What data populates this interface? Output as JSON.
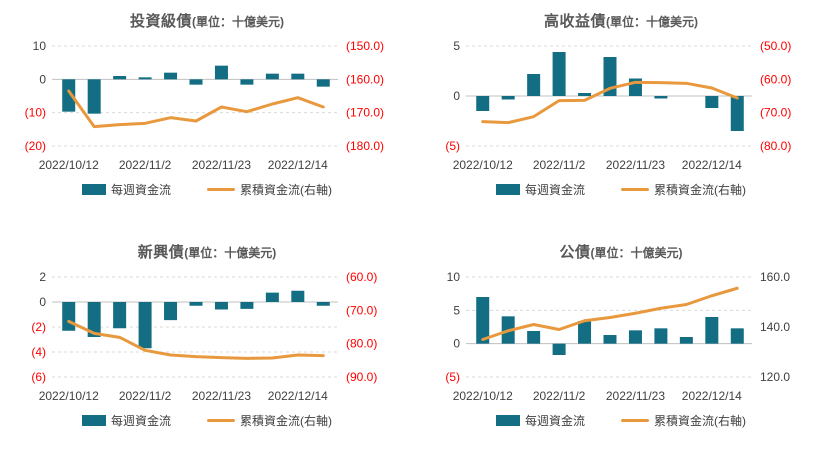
{
  "colors": {
    "bar": "#146e83",
    "line": "#e8993e",
    "negative_label": "#ff0000",
    "label": "#404040",
    "title": "#595959",
    "gridline": "#d9d9d9",
    "zeroline": "#c0c0c0",
    "background": "#ffffff"
  },
  "legend": {
    "bar_label": "每週資金流",
    "line_label": "累積資金流(右軸)"
  },
  "chart_data": [
    {
      "type": "bar+line",
      "title": "投資級債",
      "unit_label": "(單位：十億美元)",
      "n_points": 11,
      "x_tick_labels": [
        {
          "index": 0,
          "label": "2022/10/12"
        },
        {
          "index": 3,
          "label": "2022/11/2"
        },
        {
          "index": 6,
          "label": "2022/11/23"
        },
        {
          "index": 9,
          "label": "2022/12/14"
        }
      ],
      "series": [
        {
          "name": "每週資金流",
          "type": "bar",
          "axis": "left",
          "values": [
            -9.7,
            -10.3,
            1.0,
            0.6,
            2.0,
            -1.6,
            4.1,
            -1.6,
            1.7,
            1.7,
            -2.2
          ]
        },
        {
          "name": "累積資金流(右軸)",
          "type": "line",
          "axis": "right",
          "values": [
            -163.5,
            -174.2,
            -173.6,
            -173.2,
            -171.5,
            -172.5,
            -168.3,
            -169.7,
            -167.4,
            -165.5,
            -168.3
          ]
        }
      ],
      "left_axis": {
        "range": [
          -20,
          10
        ],
        "ticks": [
          {
            "label": "10",
            "value": 10
          },
          {
            "label": "0",
            "value": 0
          },
          {
            "label": "(10)",
            "value": -10
          },
          {
            "label": "(20)",
            "value": -20
          }
        ]
      },
      "right_axis": {
        "range": [
          -180,
          -150
        ],
        "ticks": [
          {
            "label": "(150.0)",
            "value": -150
          },
          {
            "label": "(160.0)",
            "value": -160
          },
          {
            "label": "(170.0)",
            "value": -170
          },
          {
            "label": "(180.0)",
            "value": -180
          }
        ]
      }
    },
    {
      "type": "bar+line",
      "title": "高收益債",
      "unit_label": "(單位：十億美元)",
      "n_points": 11,
      "x_tick_labels": [
        {
          "index": 0,
          "label": "2022/10/12"
        },
        {
          "index": 3,
          "label": "2022/11/2"
        },
        {
          "index": 6,
          "label": "2022/11/23"
        },
        {
          "index": 9,
          "label": "2022/12/14"
        }
      ],
      "series": [
        {
          "name": "每週資金流",
          "type": "bar",
          "axis": "left",
          "values": [
            -1.5,
            -0.35,
            2.2,
            4.4,
            0.3,
            3.9,
            1.75,
            -0.25,
            0,
            -1.2,
            -3.5
          ]
        },
        {
          "name": "累積資金流(右軸)",
          "type": "line",
          "axis": "right",
          "values": [
            -72.7,
            -73.0,
            -71.2,
            -66.4,
            -66.3,
            -62.7,
            -60.9,
            -61.0,
            -61.2,
            -62.6,
            -65.6
          ]
        }
      ],
      "left_axis": {
        "range": [
          -5,
          5
        ],
        "ticks": [
          {
            "label": "5",
            "value": 5
          },
          {
            "label": "0",
            "value": 0
          },
          {
            "label": "(5)",
            "value": -5
          }
        ]
      },
      "right_axis": {
        "range": [
          -80,
          -50
        ],
        "ticks": [
          {
            "label": "(50.0)",
            "value": -50
          },
          {
            "label": "(60.0)",
            "value": -60
          },
          {
            "label": "(70.0)",
            "value": -70
          },
          {
            "label": "(80.0)",
            "value": -80
          }
        ]
      }
    },
    {
      "type": "bar+line",
      "title": "新興債",
      "unit_label": "(單位：十億美元)",
      "n_points": 11,
      "x_tick_labels": [
        {
          "index": 0,
          "label": "2022/10/12"
        },
        {
          "index": 3,
          "label": "2022/11/2"
        },
        {
          "index": 6,
          "label": "2022/11/23"
        },
        {
          "index": 9,
          "label": "2022/12/14"
        }
      ],
      "series": [
        {
          "name": "每週資金流",
          "type": "bar",
          "axis": "left",
          "values": [
            -2.3,
            -2.8,
            -2.1,
            -3.7,
            -1.45,
            -0.3,
            -0.6,
            -0.55,
            0.75,
            0.9,
            -0.3
          ]
        },
        {
          "name": "累積資金流(右軸)",
          "type": "line",
          "axis": "right",
          "values": [
            -73.3,
            -76.9,
            -78.1,
            -82.0,
            -83.4,
            -83.9,
            -84.2,
            -84.4,
            -84.3,
            -83.4,
            -83.6
          ]
        }
      ],
      "left_axis": {
        "range": [
          -6,
          2
        ],
        "ticks": [
          {
            "label": "2",
            "value": 2
          },
          {
            "label": "0",
            "value": 0
          },
          {
            "label": "(2)",
            "value": -2
          },
          {
            "label": "(4)",
            "value": -4
          },
          {
            "label": "(6)",
            "value": -6
          }
        ]
      },
      "right_axis": {
        "range": [
          -90,
          -60
        ],
        "ticks": [
          {
            "label": "(60.0)",
            "value": -60
          },
          {
            "label": "(70.0)",
            "value": -70
          },
          {
            "label": "(80.0)",
            "value": -80
          },
          {
            "label": "(90.0)",
            "value": -90
          }
        ]
      }
    },
    {
      "type": "bar+line",
      "title": "公債",
      "unit_label": "(單位：十億美元)",
      "n_points": 11,
      "x_tick_labels": [
        {
          "index": 0,
          "label": "2022/10/12"
        },
        {
          "index": 3,
          "label": "2022/11/2"
        },
        {
          "index": 6,
          "label": "2022/11/23"
        },
        {
          "index": 9,
          "label": "2022/12/14"
        }
      ],
      "series": [
        {
          "name": "每週資金流",
          "type": "bar",
          "axis": "left",
          "values": [
            7.0,
            4.1,
            1.9,
            -1.7,
            3.4,
            1.3,
            2.0,
            2.3,
            1.0,
            4.0,
            2.3
          ]
        },
        {
          "name": "累積資金流(右軸)",
          "type": "line",
          "axis": "right",
          "values": [
            135.0,
            138.5,
            141.0,
            139.0,
            142.5,
            143.8,
            145.5,
            147.5,
            149.0,
            152.5,
            155.5
          ]
        }
      ],
      "left_axis": {
        "range": [
          -5,
          10
        ],
        "ticks": [
          {
            "label": "10",
            "value": 10
          },
          {
            "label": "5",
            "value": 5
          },
          {
            "label": "0",
            "value": 0
          },
          {
            "label": "(5)",
            "value": -5
          }
        ]
      },
      "right_axis": {
        "range": [
          120,
          160
        ],
        "ticks": [
          {
            "label": "160.0",
            "value": 160
          },
          {
            "label": "140.0",
            "value": 140
          },
          {
            "label": "120.0",
            "value": 120
          }
        ]
      }
    }
  ]
}
